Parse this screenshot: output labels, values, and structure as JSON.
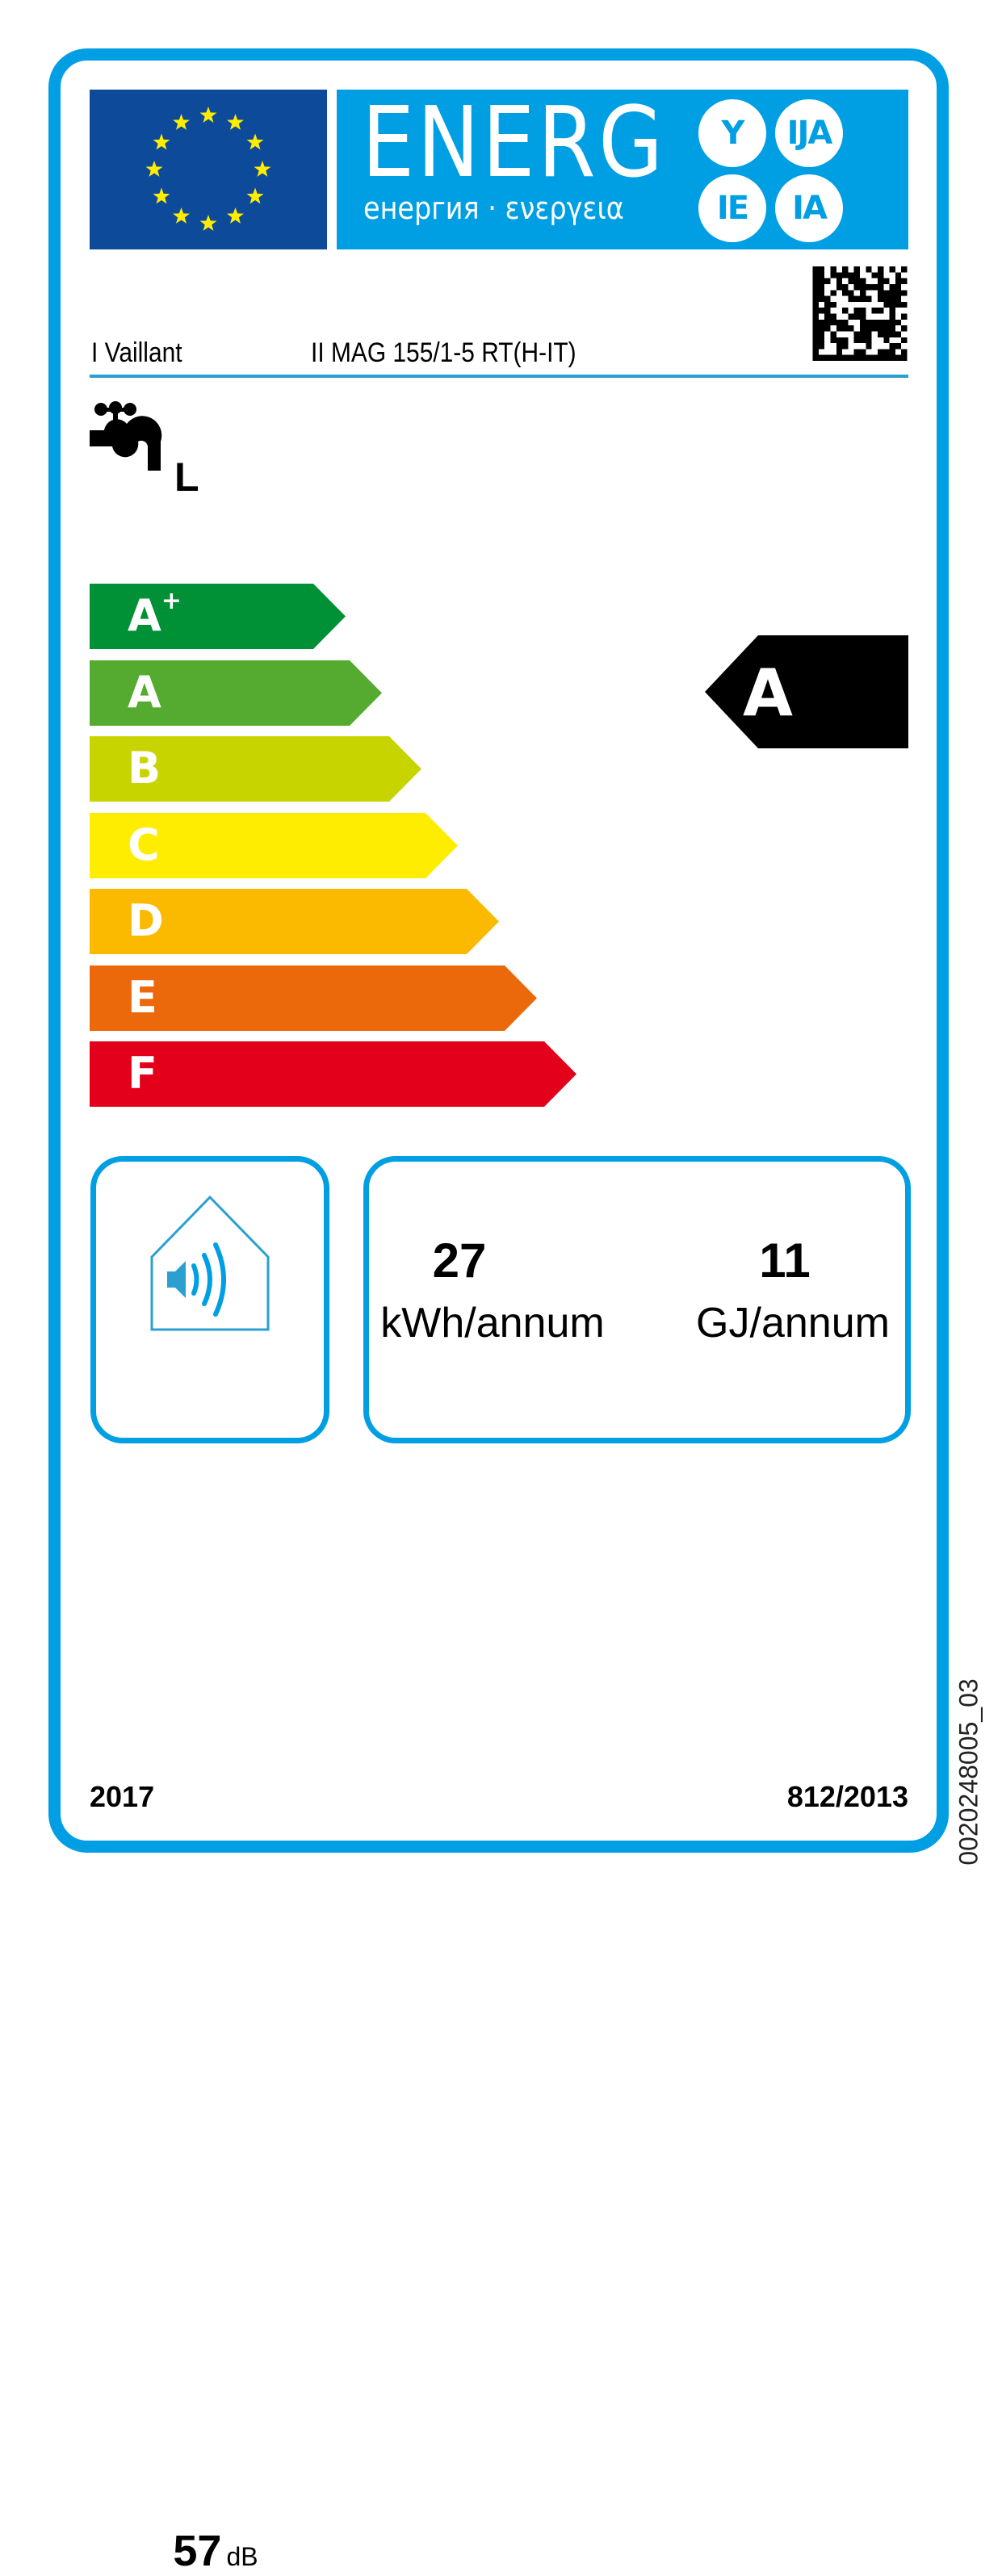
{
  "header": {
    "title": "ENERG",
    "subtitle": "енергия · ενεργεια",
    "suffixes": [
      "Y",
      "IJA",
      "IE",
      "IA"
    ],
    "brand_color": "#009FE3",
    "flag_color": "#0D4A9A",
    "star_color": "#FFED00"
  },
  "supplier": {
    "name_prefix": "I",
    "name": "Vaillant",
    "model_prefix": "II",
    "model": "MAG 155/1-5 RT(H-IT)"
  },
  "load_profile": {
    "icon": "water-tap-icon",
    "value": "L"
  },
  "scale": [
    {
      "label": "A",
      "sup": "+",
      "color": "#009036"
    },
    {
      "label": "A",
      "sup": "",
      "color": "#55AB2F"
    },
    {
      "label": "B",
      "sup": "",
      "color": "#C8D400"
    },
    {
      "label": "C",
      "sup": "",
      "color": "#FFED00"
    },
    {
      "label": "D",
      "sup": "",
      "color": "#FBBA00"
    },
    {
      "label": "E",
      "sup": "",
      "color": "#EB690B"
    },
    {
      "label": "F",
      "sup": "",
      "color": "#E2001A"
    }
  ],
  "rating": {
    "class": "A",
    "scale_index": 1
  },
  "noise": {
    "icon": "house-sound-icon",
    "value": "57",
    "unit": "dB"
  },
  "consumption": {
    "electric_value": "27",
    "electric_unit": "kWh/annum",
    "fuel_value": "11",
    "fuel_unit": "GJ/annum"
  },
  "footer": {
    "year": "2017",
    "regulation": "812/2013",
    "doc_code": "0020248005_03"
  }
}
